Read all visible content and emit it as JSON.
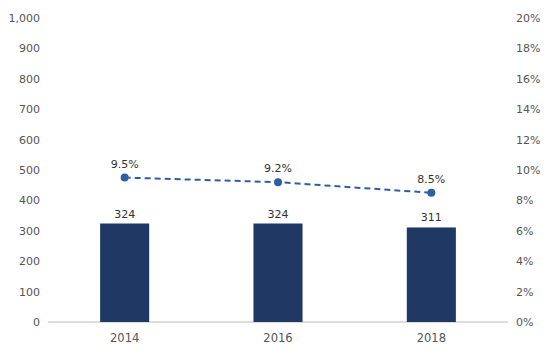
{
  "chart_data": {
    "type": "bar",
    "categories": [
      "2014",
      "2016",
      "2018"
    ],
    "series": [
      {
        "type": "bar",
        "color": "#1f3864",
        "values": [
          324,
          324,
          311
        ]
      },
      {
        "type": "line",
        "axis": "y2",
        "color": "#2e5fa3",
        "line_style": "dashed",
        "marker": "circle",
        "values": [
          9.5,
          9.2,
          8.5
        ],
        "value_labels": [
          "9.5%",
          "9.2%",
          "8.5%"
        ]
      }
    ],
    "ylim": [
      0,
      1000
    ],
    "yticks": [
      0,
      100,
      200,
      300,
      400,
      500,
      600,
      700,
      800,
      900,
      {
        "value": 1000,
        "label": "1,000"
      }
    ],
    "y2lim": [
      0,
      20
    ],
    "y2ticks": [
      {
        "value": 0,
        "label": "0%"
      },
      {
        "value": 2,
        "label": "2%"
      },
      {
        "value": 4,
        "label": "4%"
      },
      {
        "value": 6,
        "label": "6%"
      },
      {
        "value": 8,
        "label": "8%"
      },
      {
        "value": 10,
        "label": "10%"
      },
      {
        "value": 12,
        "label": "12%"
      },
      {
        "value": 14,
        "label": "14%"
      },
      {
        "value": 16,
        "label": "16%"
      },
      {
        "value": 18,
        "label": "18%"
      },
      {
        "value": 20,
        "label": "20%"
      }
    ],
    "grid": false,
    "data_labels": true
  }
}
